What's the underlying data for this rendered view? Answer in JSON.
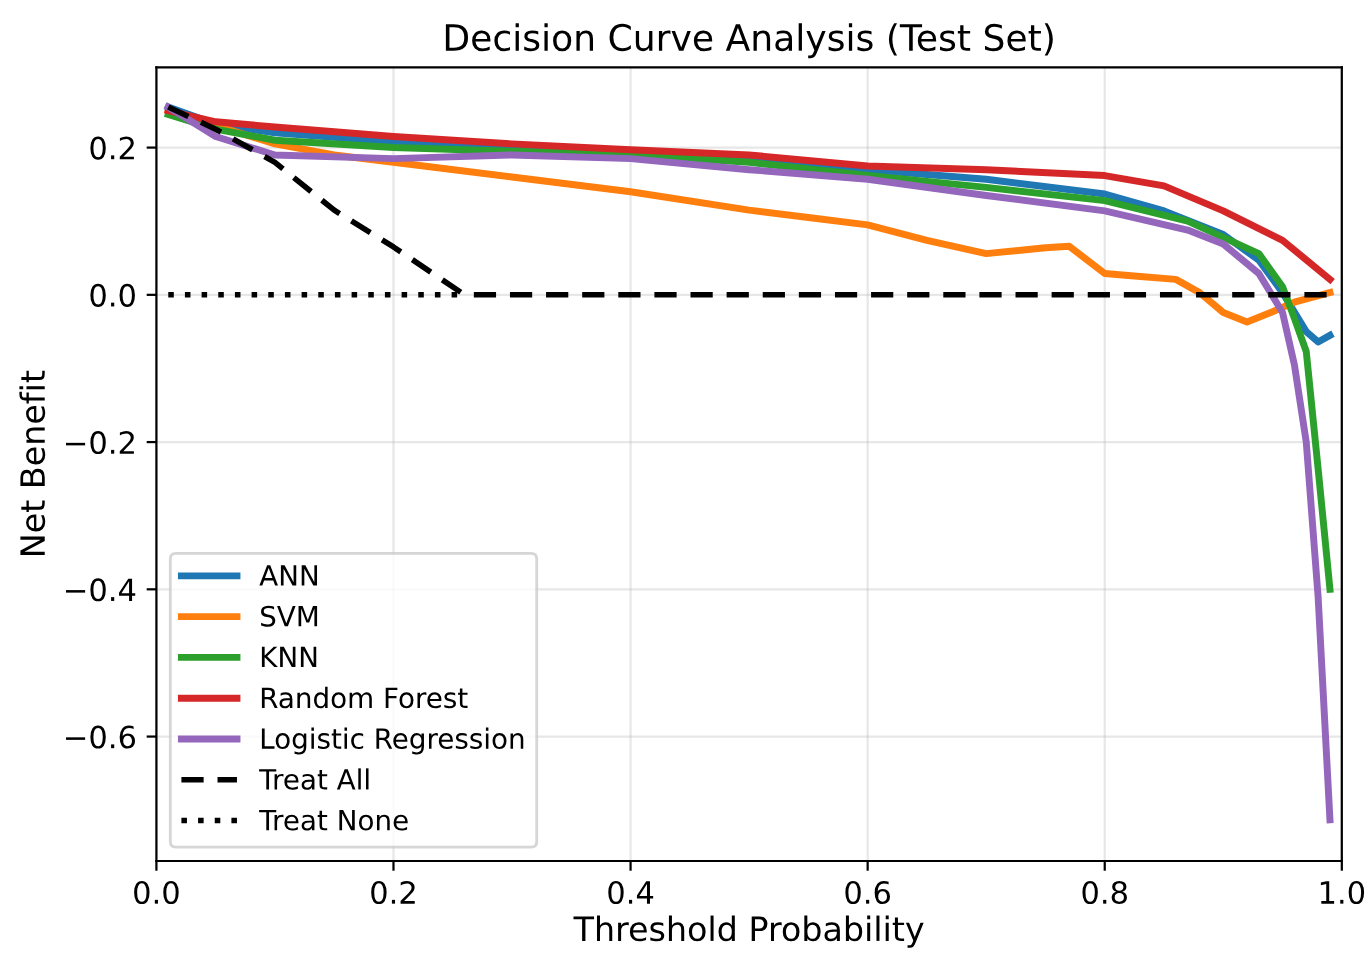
{
  "chart_data": {
    "type": "line",
    "title": "Decision Curve Analysis (Test Set)",
    "xlabel": "Threshold Probability",
    "ylabel": "Net Benefit",
    "xlim": [
      0,
      1
    ],
    "ylim": [
      -0.769,
      0.309
    ],
    "xticks": [
      {
        "value": 0,
        "label": "0.0"
      },
      0.2,
      0.4,
      0.6,
      0.8,
      {
        "value": 1,
        "label": "1.0"
      }
    ],
    "yticks": [
      -0.6,
      -0.4,
      -0.2,
      {
        "value": 0,
        "label": "0.0"
      },
      0.2
    ],
    "grid": true,
    "legend": "bottom left",
    "series": [
      {
        "name": "ANN",
        "color": "#1f77b4",
        "line_style": "solid",
        "x": [
          0.01,
          0.05,
          0.1,
          0.2,
          0.3,
          0.4,
          0.5,
          0.6,
          0.7,
          0.8,
          0.85,
          0.9,
          0.93,
          0.95,
          0.97,
          0.98,
          0.99
        ],
        "values": [
          0.255,
          0.232,
          0.22,
          0.208,
          0.2,
          0.19,
          0.182,
          0.17,
          0.157,
          0.137,
          0.114,
          0.082,
          0.047,
          0.003,
          -0.05,
          -0.064,
          -0.055
        ]
      },
      {
        "name": "SVM",
        "color": "#ff7f0e",
        "line_style": "solid",
        "x": [
          0.01,
          0.05,
          0.1,
          0.15,
          0.2,
          0.3,
          0.4,
          0.5,
          0.55,
          0.6,
          0.65,
          0.7,
          0.75,
          0.77,
          0.8,
          0.83,
          0.86,
          0.88,
          0.9,
          0.92,
          0.94,
          0.96,
          0.99
        ],
        "values": [
          0.25,
          0.23,
          0.205,
          0.19,
          0.18,
          0.16,
          0.14,
          0.115,
          0.105,
          0.095,
          0.074,
          0.056,
          0.064,
          0.066,
          0.029,
          0.025,
          0.021,
          0.003,
          -0.024,
          -0.037,
          -0.024,
          -0.01,
          0.003
        ]
      },
      {
        "name": "KNN",
        "color": "#2ca02c",
        "line_style": "solid",
        "x": [
          0.01,
          0.05,
          0.1,
          0.2,
          0.3,
          0.4,
          0.5,
          0.6,
          0.7,
          0.8,
          0.87,
          0.9,
          0.93,
          0.95,
          0.96,
          0.97,
          0.98,
          0.99
        ],
        "values": [
          0.245,
          0.225,
          0.21,
          0.2,
          0.195,
          0.19,
          0.18,
          0.162,
          0.146,
          0.128,
          0.1,
          0.078,
          0.056,
          0.011,
          -0.032,
          -0.077,
          -0.236,
          -0.4
        ]
      },
      {
        "name": "Random Forest",
        "color": "#d62728",
        "line_style": "solid",
        "x": [
          0.01,
          0.05,
          0.1,
          0.2,
          0.3,
          0.4,
          0.5,
          0.6,
          0.7,
          0.8,
          0.85,
          0.9,
          0.95,
          0.99
        ],
        "values": [
          0.25,
          0.235,
          0.228,
          0.215,
          0.205,
          0.197,
          0.19,
          0.175,
          0.17,
          0.162,
          0.148,
          0.114,
          0.074,
          0.021
        ]
      },
      {
        "name": "Logistic Regression",
        "color": "#9467bd",
        "line_style": "solid",
        "x": [
          0.01,
          0.05,
          0.1,
          0.2,
          0.3,
          0.4,
          0.5,
          0.6,
          0.7,
          0.8,
          0.87,
          0.9,
          0.93,
          0.95,
          0.96,
          0.97,
          0.98,
          0.99
        ],
        "values": [
          0.255,
          0.215,
          0.19,
          0.185,
          0.19,
          0.185,
          0.17,
          0.157,
          0.135,
          0.114,
          0.088,
          0.069,
          0.029,
          -0.024,
          -0.095,
          -0.2,
          -0.41,
          -0.713
        ]
      },
      {
        "name": "Treat All",
        "color": "#000000",
        "line_style": "dashed",
        "x": [
          0.01,
          0.05,
          0.1,
          0.15,
          0.2,
          0.26,
          0.99
        ],
        "values": [
          0.255,
          0.225,
          0.18,
          0.115,
          0.065,
          0.0,
          0.0
        ]
      },
      {
        "name": "Treat None",
        "color": "#000000",
        "line_style": "dotted",
        "x": [
          0.01,
          0.26
        ],
        "values": [
          0.0,
          0.0
        ]
      }
    ]
  }
}
